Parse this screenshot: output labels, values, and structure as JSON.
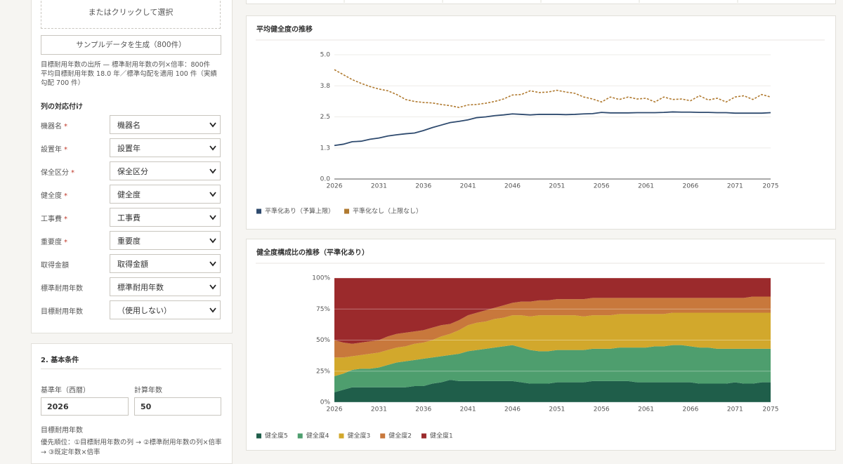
{
  "form": {
    "upload_text": "またはクリックして選択",
    "sample_button": "サンプルデータを生成（800件）",
    "note": [
      "目標耐用年数の出所 — 標準耐用年数の列×倍率：800件",
      "平均目標耐用年数 18.0 年／標準勾配を適用 100 件（実績勾配 700 件）"
    ],
    "mapping_title": "列の対応付け",
    "required_mark": "*",
    "mappings": [
      {
        "label": "機器名",
        "required": true,
        "value": "機器名"
      },
      {
        "label": "設置年",
        "required": true,
        "value": "設置年"
      },
      {
        "label": "保全区分",
        "required": true,
        "value": "保全区分"
      },
      {
        "label": "健全度",
        "required": true,
        "value": "健全度"
      },
      {
        "label": "工事費",
        "required": true,
        "value": "工事費"
      },
      {
        "label": "重要度",
        "required": true,
        "value": "重要度"
      },
      {
        "label": "取得金額",
        "required": false,
        "value": "取得金額"
      },
      {
        "label": "標準耐用年数",
        "required": false,
        "value": "標準耐用年数"
      },
      {
        "label": "目標耐用年数",
        "required": false,
        "value": "（使用しない）"
      }
    ],
    "section2": {
      "title": "2. 基本条件",
      "base_year_label": "基準年（西暦）",
      "base_year": "2026",
      "years_label": "計算年数",
      "years": "50",
      "target_label": "目標耐用年数",
      "priority": "優先順位：①目標耐用年数の列 → ②標準耐用年数の列×倍率 → ③既定年数×倍率"
    }
  },
  "chart_data": [
    {
      "type": "line",
      "title": "平均健全度の推移",
      "x": [
        2026,
        2027,
        2028,
        2029,
        2030,
        2031,
        2032,
        2033,
        2034,
        2035,
        2036,
        2037,
        2038,
        2039,
        2040,
        2041,
        2042,
        2043,
        2044,
        2045,
        2046,
        2047,
        2048,
        2049,
        2050,
        2051,
        2052,
        2053,
        2054,
        2055,
        2056,
        2057,
        2058,
        2059,
        2060,
        2061,
        2062,
        2063,
        2064,
        2065,
        2066,
        2067,
        2068,
        2069,
        2070,
        2071,
        2072,
        2073,
        2074,
        2075
      ],
      "xlim": [
        2026,
        2075
      ],
      "xticks": [
        2026,
        2031,
        2036,
        2041,
        2046,
        2051,
        2056,
        2061,
        2066,
        2071,
        2075
      ],
      "ylim": [
        0,
        5
      ],
      "yticks": [
        {
          "value": 0,
          "label": "0.0"
        },
        {
          "value": 1.25,
          "label": "1.3"
        },
        2.5,
        {
          "value": 3.75,
          "label": "3.8"
        },
        {
          "value": 5,
          "label": "5.0"
        }
      ],
      "grid": true,
      "series": [
        {
          "name": "平準化あり（予算上限）",
          "color": "#2e4a6e",
          "style": "solid",
          "values": [
            1.35,
            1.4,
            1.5,
            1.52,
            1.6,
            1.65,
            1.73,
            1.78,
            1.82,
            1.85,
            1.95,
            2.07,
            2.17,
            2.27,
            2.32,
            2.38,
            2.47,
            2.5,
            2.55,
            2.58,
            2.62,
            2.6,
            2.58,
            2.6,
            2.6,
            2.6,
            2.59,
            2.6,
            2.62,
            2.63,
            2.68,
            2.66,
            2.66,
            2.66,
            2.67,
            2.67,
            2.67,
            2.68,
            2.7,
            2.69,
            2.69,
            2.68,
            2.68,
            2.67,
            2.67,
            2.65,
            2.65,
            2.65,
            2.65,
            2.67
          ]
        },
        {
          "name": "平準化なし（上限なし）",
          "color": "#b07a30",
          "style": "dashed",
          "values": [
            4.4,
            4.2,
            4.0,
            3.85,
            3.72,
            3.62,
            3.55,
            3.4,
            3.2,
            3.12,
            3.08,
            3.06,
            3.0,
            2.95,
            2.88,
            2.98,
            3.0,
            3.05,
            3.12,
            3.22,
            3.38,
            3.4,
            3.55,
            3.48,
            3.5,
            3.57,
            3.5,
            3.45,
            3.3,
            3.22,
            3.1,
            3.3,
            3.2,
            3.3,
            3.22,
            3.25,
            3.1,
            3.3,
            3.2,
            3.22,
            3.15,
            3.35,
            3.18,
            3.25,
            3.1,
            3.3,
            3.35,
            3.2,
            3.4,
            3.3
          ]
        }
      ]
    },
    {
      "type": "stacked_area",
      "title": "健全度構成比の推移（平準化あり）",
      "x": [
        2026,
        2027,
        2028,
        2029,
        2030,
        2031,
        2032,
        2033,
        2034,
        2035,
        2036,
        2037,
        2038,
        2039,
        2040,
        2041,
        2042,
        2043,
        2044,
        2045,
        2046,
        2047,
        2048,
        2049,
        2050,
        2051,
        2052,
        2053,
        2054,
        2055,
        2056,
        2057,
        2058,
        2059,
        2060,
        2061,
        2062,
        2063,
        2064,
        2065,
        2066,
        2067,
        2068,
        2069,
        2070,
        2071,
        2072,
        2073,
        2074,
        2075
      ],
      "xlim": [
        2026,
        2075
      ],
      "xticks": [
        2026,
        2031,
        2036,
        2041,
        2046,
        2051,
        2056,
        2061,
        2066,
        2071,
        2075
      ],
      "ylim": [
        0,
        100
      ],
      "yticks": [
        {
          "value": 0,
          "label": "0%"
        },
        {
          "value": 25,
          "label": "25%"
        },
        {
          "value": 50,
          "label": "50%"
        },
        {
          "value": 75,
          "label": "75%"
        },
        {
          "value": 100,
          "label": "100%"
        }
      ],
      "grid": true,
      "series": [
        {
          "name": "健全度5",
          "color": "#1f5e4a",
          "values": [
            8,
            10,
            12,
            12,
            12,
            12,
            12,
            12,
            12,
            13,
            13,
            15,
            16,
            18,
            17,
            17,
            17,
            17,
            17,
            17,
            17,
            16,
            15,
            15,
            15,
            16,
            16,
            16,
            16,
            17,
            17,
            17,
            17,
            17,
            16,
            16,
            16,
            16,
            16,
            16,
            16,
            15,
            15,
            15,
            15,
            16,
            15,
            15,
            16,
            16
          ]
        },
        {
          "name": "健全度4",
          "color": "#4e9e6e",
          "values": [
            13,
            13,
            14,
            15,
            15,
            16,
            18,
            20,
            21,
            21,
            22,
            21,
            21,
            20,
            22,
            24,
            25,
            26,
            27,
            28,
            29,
            28,
            27,
            26,
            26,
            26,
            26,
            26,
            26,
            26,
            26,
            26,
            27,
            27,
            28,
            28,
            29,
            29,
            30,
            30,
            29,
            29,
            29,
            28,
            28,
            27,
            28,
            28,
            27,
            27
          ]
        },
        {
          "name": "健全度3",
          "color": "#d2a82c",
          "values": [
            15,
            13,
            11,
            11,
            12,
            12,
            12,
            12,
            12,
            13,
            13,
            14,
            16,
            17,
            19,
            21,
            22,
            22,
            23,
            23,
            24,
            26,
            27,
            29,
            29,
            28,
            28,
            28,
            27,
            27,
            27,
            27,
            27,
            27,
            27,
            27,
            26,
            26,
            26,
            26,
            27,
            28,
            28,
            29,
            29,
            29,
            29,
            29,
            29,
            29
          ]
        },
        {
          "name": "健全度2",
          "color": "#c8783c",
          "values": [
            14,
            12,
            10,
            10,
            10,
            10,
            11,
            11,
            11,
            10,
            10,
            10,
            9,
            8,
            8,
            8,
            8,
            9,
            9,
            10,
            10,
            11,
            12,
            12,
            12,
            13,
            13,
            13,
            14,
            14,
            14,
            14,
            13,
            13,
            13,
            13,
            13,
            13,
            12,
            12,
            12,
            12,
            12,
            12,
            12,
            12,
            12,
            13,
            13,
            13
          ]
        },
        {
          "name": "健全度1",
          "color": "#9b2a2c",
          "values": [
            50,
            52,
            53,
            52,
            51,
            50,
            47,
            45,
            44,
            43,
            42,
            40,
            38,
            37,
            34,
            30,
            28,
            26,
            24,
            22,
            20,
            19,
            19,
            18,
            18,
            17,
            17,
            17,
            17,
            16,
            16,
            16,
            16,
            16,
            16,
            16,
            16,
            16,
            16,
            16,
            16,
            16,
            16,
            16,
            16,
            16,
            16,
            15,
            15,
            15
          ]
        }
      ]
    }
  ]
}
